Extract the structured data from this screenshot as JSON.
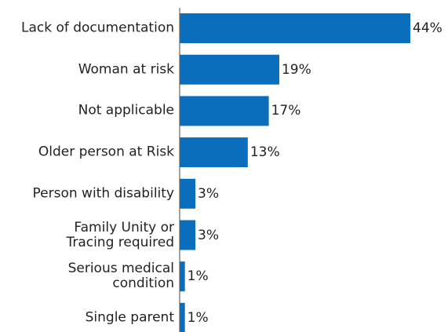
{
  "chart_data": {
    "type": "barh",
    "categories": [
      "Lack of documentation",
      "Woman at risk",
      "Not applicable",
      "Older person at Risk",
      "Person with disability",
      "Family Unity or\nTracing required",
      "Serious medical\ncondition",
      "Single parent"
    ],
    "values": [
      44,
      19,
      17,
      13,
      3,
      3,
      1,
      1
    ],
    "value_labels": [
      "44%",
      "19%",
      "17%",
      "13%",
      "3%",
      "3%",
      "1%",
      "1%"
    ],
    "color": "#0a6ebd"
  }
}
